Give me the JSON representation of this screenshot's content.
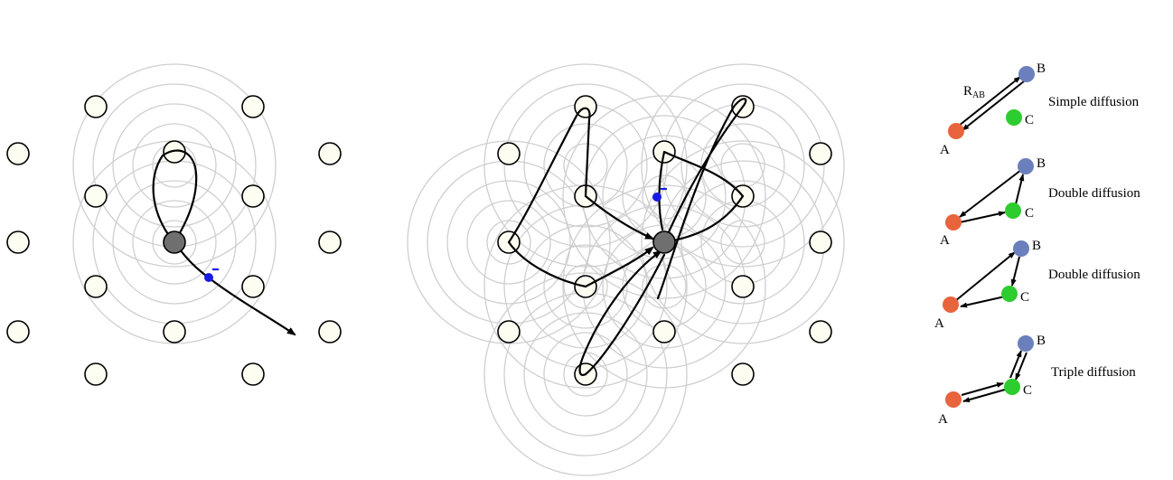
{
  "colors": {
    "site_fill": "#fdfdf2",
    "occupied": "#6f6f6f",
    "rings": "#cfcfcf",
    "electron": "#1a1ae6",
    "atom_A": "#e8643c",
    "atom_B": "#6b7fbd",
    "atom_C": "#2ecc2e"
  },
  "electron_charge": "-",
  "legend": {
    "labels": {
      "A": "A",
      "B": "B",
      "C": "C"
    },
    "r_main": "R",
    "r_sub": "AB",
    "captions": [
      "Simple diffusion",
      "Double diffusion",
      "Double diffusion",
      "Triple diffusion"
    ]
  }
}
